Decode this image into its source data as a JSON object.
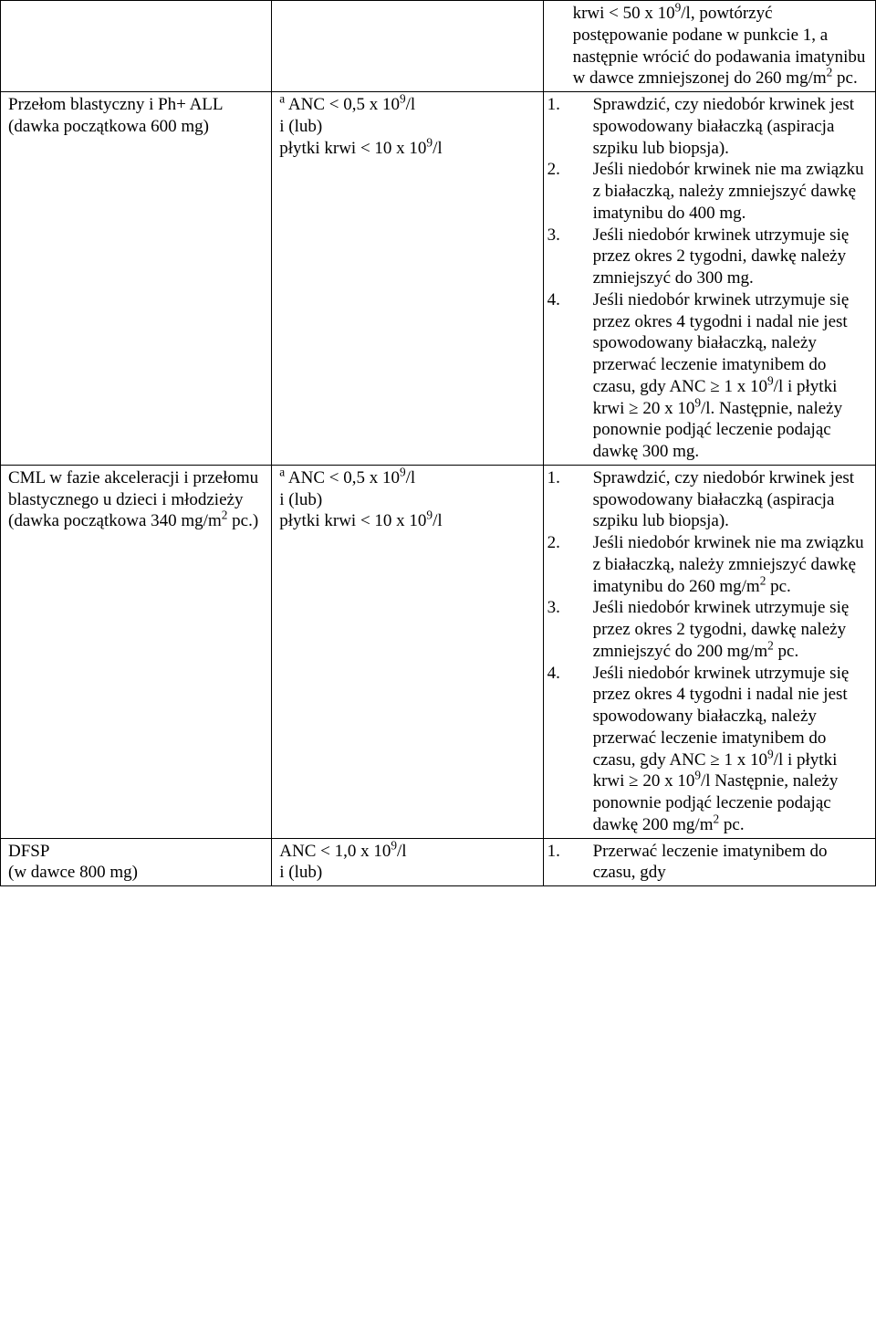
{
  "rows": [
    {
      "c1": "",
      "c2": "",
      "c3_frag": "krwi < 50 x 10⁹/l, powtórzyć postępowanie podane w punkcie 1, a następnie wrócić do podawania imatynibu w dawce zmniejszonej do 260 mg/m² pc."
    },
    {
      "c1": "Przełom blastyczny i Ph+ ALL (dawka początkowa 600 mg)",
      "c2": "ᵃ ANC < 0,5 x 10⁹/l\ni (lub)\npłytki krwi < 10 x 10⁹/l",
      "c3_list": [
        "Sprawdzić, czy niedobór krwinek jest spowodowany białaczką (aspiracja szpiku lub biopsja).",
        "Jeśli niedobór krwinek nie ma związku z białaczką, należy zmniejszyć dawkę imatynibu do 400 mg.",
        "Jeśli niedobór krwinek utrzymuje się przez okres 2 tygodni, dawkę należy zmniejszyć do 300 mg.",
        "Jeśli niedobór krwinek utrzymuje się przez okres 4 tygodni i nadal nie jest spowodowany białaczką, należy przerwać leczenie imatynibem do czasu, gdy ANC ≥ 1 x 10⁹/l i płytki krwi ≥ 20 x 10⁹/l. Następnie, należy ponownie podjąć leczenie podając dawkę 300 mg."
      ]
    },
    {
      "c1": "CML w fazie akceleracji i przełomu blastycznego u dzieci i młodzieży\n(dawka początkowa 340 mg/m² pc.)",
      "c2": "ᵃ ANC < 0,5 x 10⁹/l\ni (lub)\npłytki krwi < 10 x 10⁹/l",
      "c3_list": [
        "Sprawdzić, czy niedobór krwinek jest spowodowany białaczką (aspiracja szpiku lub biopsja).",
        "Jeśli niedobór krwinek nie ma związku z białaczką, należy zmniejszyć dawkę imatynibu do 260 mg/m² pc.",
        "Jeśli niedobór krwinek utrzymuje się przez okres 2 tygodni, dawkę należy zmniejszyć do 200 mg/m² pc.",
        "Jeśli niedobór krwinek utrzymuje się przez okres 4 tygodni i nadal nie jest spowodowany białaczką, należy przerwać leczenie imatynibem do czasu, gdy ANC ≥ 1 x 10⁹/l i płytki krwi ≥ 20 x 10⁹/l Następnie, należy ponownie podjąć leczenie podając dawkę 200 mg/m² pc."
      ]
    },
    {
      "c1": "DFSP\n(w dawce 800 mg)",
      "c2": "ANC < 1,0 x 10⁹/l\ni (lub)",
      "c3_list": [
        "Przerwać leczenie imatynibem do czasu, gdy"
      ]
    }
  ]
}
